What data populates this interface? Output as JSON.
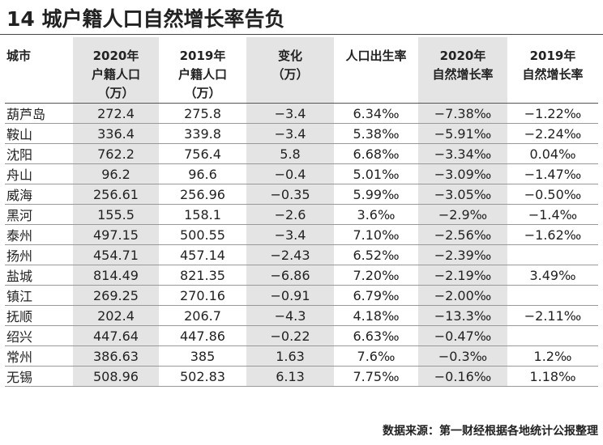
{
  "title": "14 城户籍人口自然增长率告负",
  "headers": [
    {
      "lines": [
        "城市"
      ]
    },
    {
      "lines": [
        "2020年",
        "户籍人口",
        "（万）"
      ]
    },
    {
      "lines": [
        "2019年",
        "户籍人口",
        "（万）"
      ]
    },
    {
      "lines": [
        "变化",
        "（万）"
      ]
    },
    {
      "lines": [
        "人口出生率"
      ]
    },
    {
      "lines": [
        "2020年",
        "自然增长率"
      ]
    },
    {
      "lines": [
        "2019年",
        "自然增长率"
      ]
    }
  ],
  "rows": [
    [
      "葫芦岛",
      "272.4",
      "275.8",
      "−3.4",
      "6.34‰",
      "−7.38‰",
      "−1.22‰"
    ],
    [
      "鞍山",
      "336.4",
      "339.8",
      "−3.4",
      "5.38‰",
      "−5.91‰",
      "−2.24‰"
    ],
    [
      "沈阳",
      "762.2",
      "756.4",
      "5.8",
      "6.68‰",
      "−3.34‰",
      "0.04‰"
    ],
    [
      "舟山",
      "96.2",
      "96.6",
      "−0.4",
      "5.01‰",
      "−3.09‰",
      "−1.47‰"
    ],
    [
      "威海",
      "256.61",
      "256.96",
      "−0.35",
      "5.99‰",
      "−3.05‰",
      "−0.50‰"
    ],
    [
      "黑河",
      "155.5",
      "158.1",
      "−2.6",
      "3.6‰",
      "−2.9‰",
      "−1.4‰"
    ],
    [
      "泰州",
      "497.15",
      "500.55",
      "−3.4",
      "7.10‰",
      "−2.56‰",
      "−1.62‰"
    ],
    [
      "扬州",
      "454.71",
      "457.14",
      "−2.43",
      "6.52‰",
      "−2.39‰",
      ""
    ],
    [
      "盐城",
      "814.49",
      "821.35",
      "−6.86",
      "7.20‰",
      "−2.19‰",
      "3.49‰"
    ],
    [
      "镇江",
      "269.25",
      "270.16",
      "−0.91",
      "6.79‰",
      "−2.00‰",
      ""
    ],
    [
      "抚顺",
      "202.4",
      "206.7",
      "−4.3",
      "4.18‰",
      "−13.3‰",
      "−2.11‰"
    ],
    [
      "绍兴",
      "447.64",
      "447.86",
      "−0.22",
      "6.63‰",
      "−0.47‰",
      ""
    ],
    [
      "常州",
      "386.63",
      "385",
      "1.63",
      "7.6‰",
      "−0.3‰",
      "1.2‰"
    ],
    [
      "无锡",
      "508.96",
      "502.83",
      "6.13",
      "7.75‰",
      "−0.16‰",
      "1.18‰"
    ]
  ],
  "source": "数据来源：第一财经根据各地统计公报整理",
  "colors": {
    "shade": "#e4e4e4",
    "text": "#222222",
    "rule": "#555555"
  }
}
